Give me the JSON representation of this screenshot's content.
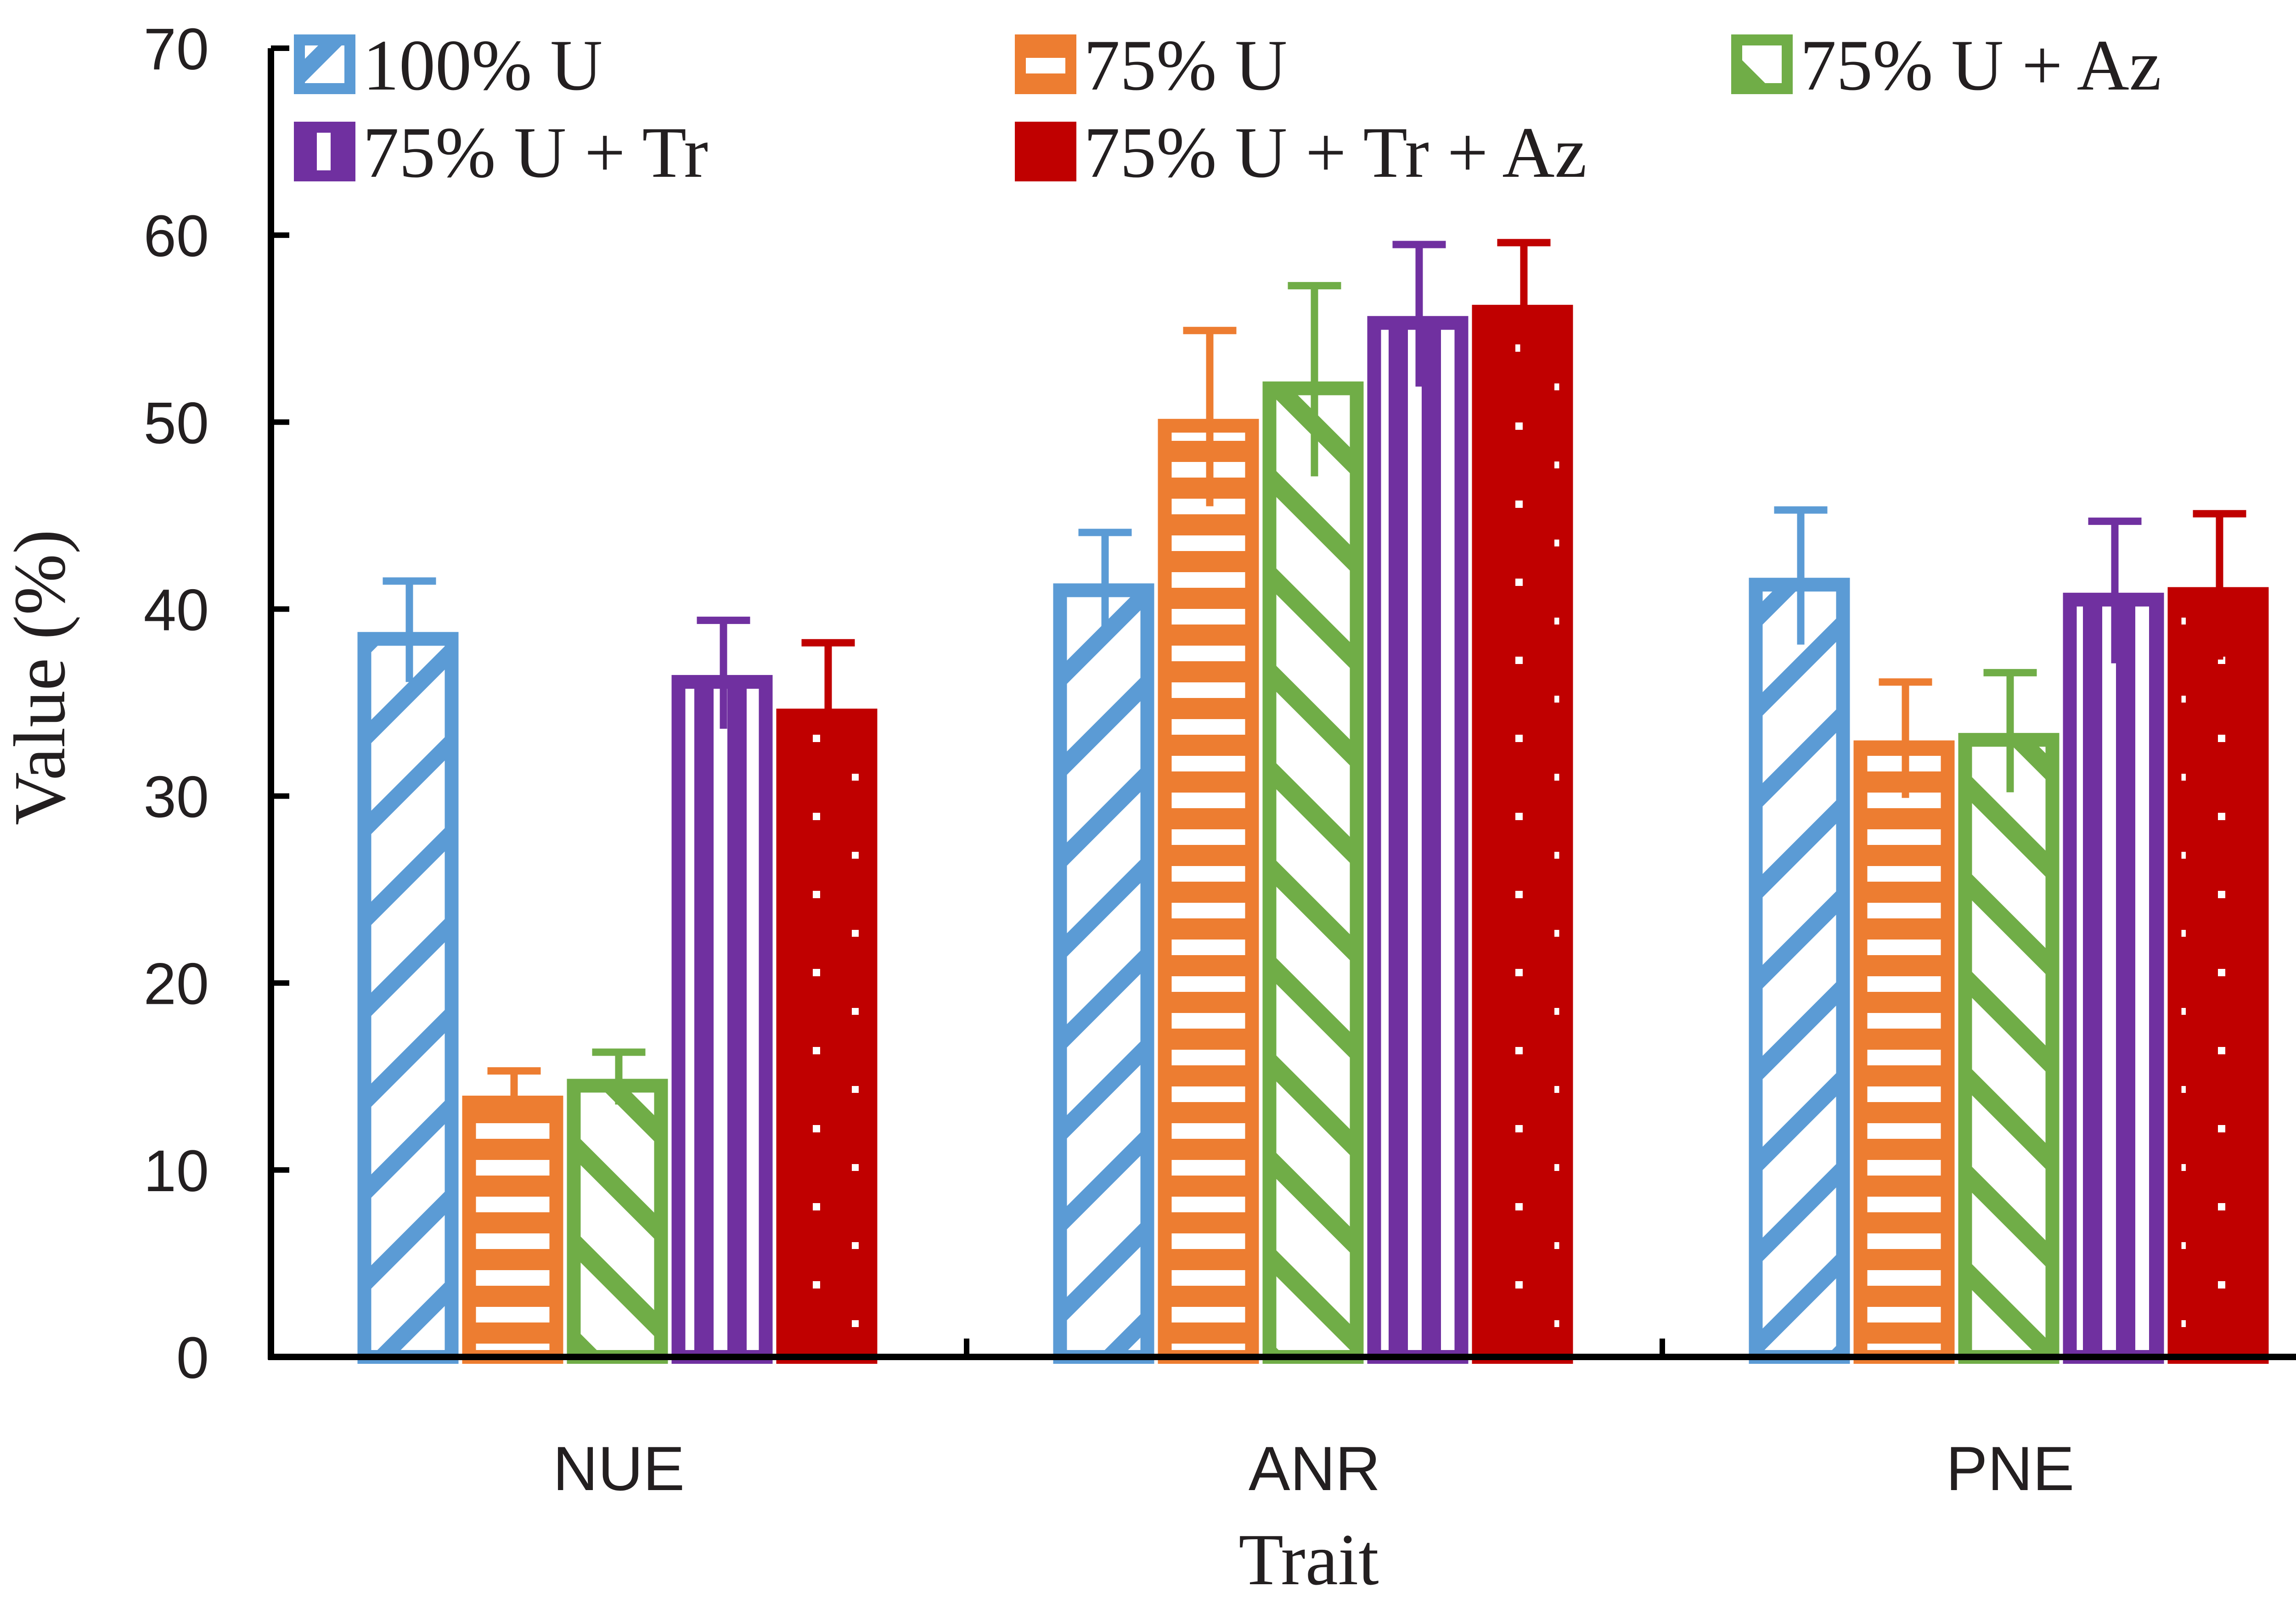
{
  "chart_data": {
    "type": "bar",
    "title": "",
    "xlabel": "Trait",
    "ylabel": "Value (%)",
    "ylim": [
      0,
      70
    ],
    "yticks": [
      "0",
      "10",
      "20",
      "30",
      "40",
      "50",
      "60",
      "70"
    ],
    "categories": [
      "NUE",
      "ANR",
      "PNE"
    ],
    "grid": false,
    "legend_position": "top",
    "series": [
      {
        "name": "100% U",
        "color": "#5b9bd5",
        "pattern": "diagonal",
        "values": [
          38.8,
          41.4,
          41.7
        ],
        "errors": [
          2.7,
          2.7,
          3.6
        ]
      },
      {
        "name": "75% U",
        "color": "#ed7d31",
        "pattern": "horizontal",
        "values": [
          14.0,
          50.2,
          33.0
        ],
        "errors": [
          1.3,
          4.7,
          3.1
        ]
      },
      {
        "name": "75% U + Az",
        "color": "#70ad47",
        "pattern": "diagonal-alt",
        "values": [
          14.9,
          52.2,
          33.4
        ],
        "errors": [
          1.4,
          5.1,
          3.2
        ]
      },
      {
        "name": "75% U + Tr",
        "color": "#7030a0",
        "pattern": "vertical",
        "values": [
          36.5,
          55.7,
          40.9
        ],
        "errors": [
          2.9,
          3.8,
          3.8
        ]
      },
      {
        "name": "75% U + Tr + Az",
        "color": "#c00000",
        "pattern": "dots",
        "values": [
          34.7,
          56.3,
          41.2
        ],
        "errors": [
          3.5,
          3.3,
          3.9
        ]
      }
    ]
  }
}
